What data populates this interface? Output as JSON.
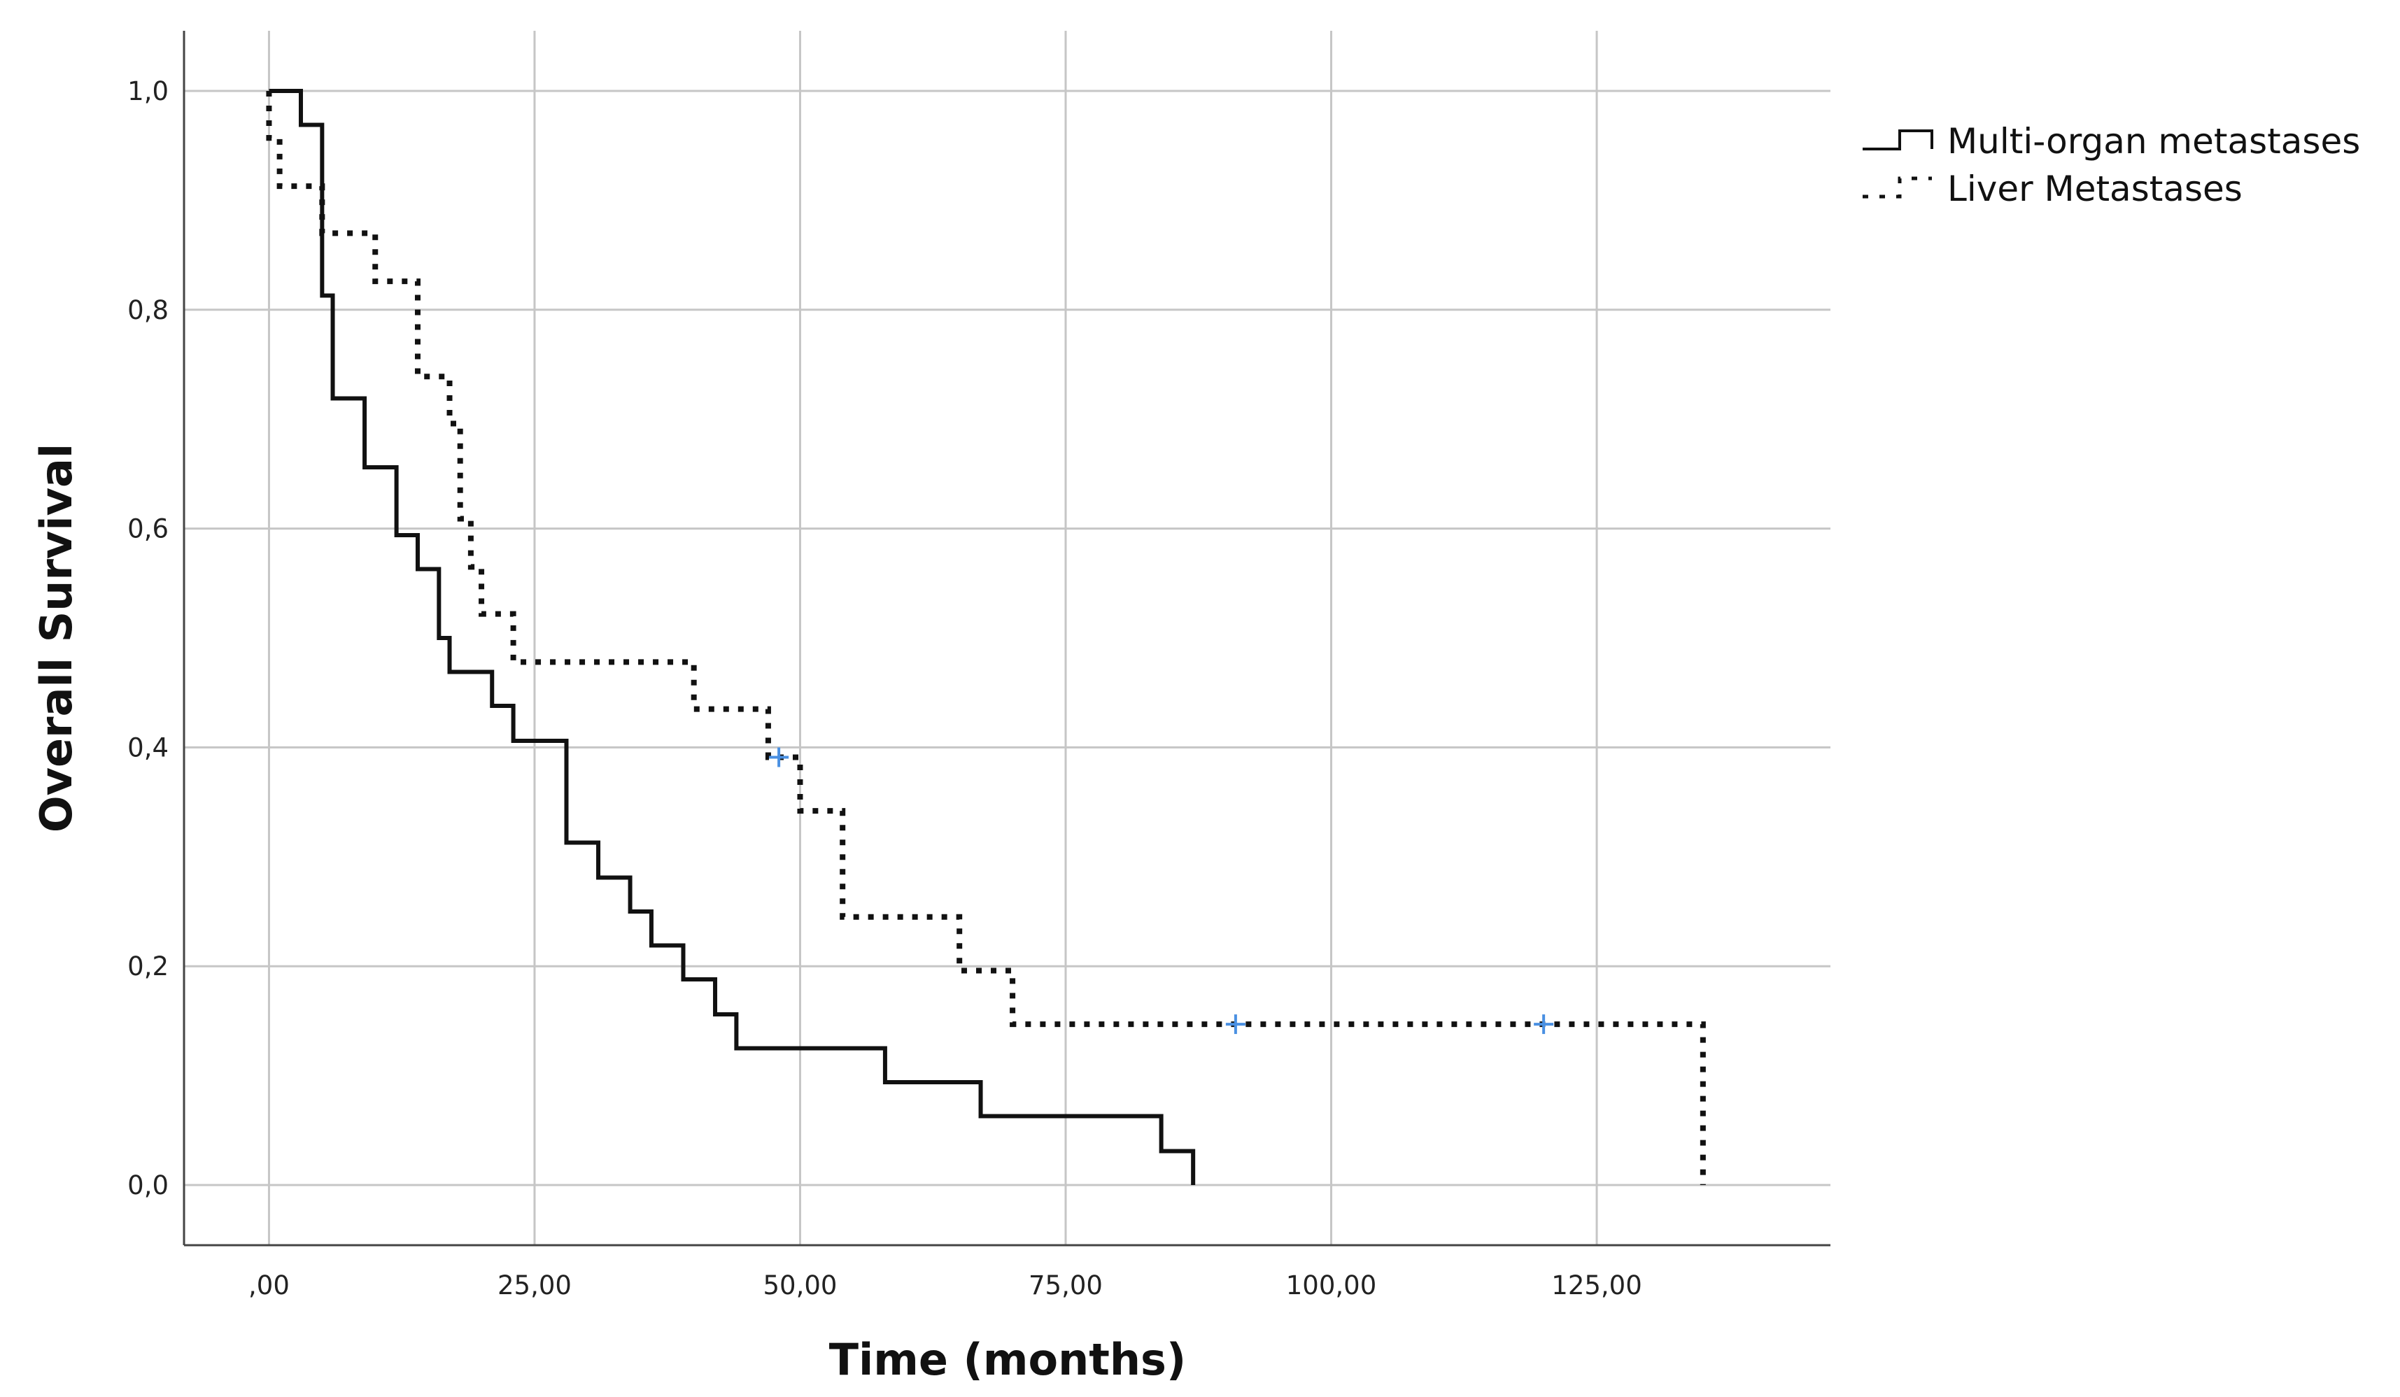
{
  "chart_data": {
    "type": "line",
    "subtype": "kaplan-meier-step",
    "title": "",
    "xlabel": "Time (months)",
    "ylabel": "Overall Survival",
    "xlim": [
      -8,
      147
    ],
    "ylim": [
      -0.055,
      1.055
    ],
    "x_ticks": [
      0,
      25,
      50,
      75,
      100,
      125
    ],
    "x_tick_labels": [
      ",00",
      "25,00",
      "50,00",
      "75,00",
      "100,00",
      "125,00"
    ],
    "y_ticks": [
      0,
      0.2,
      0.4,
      0.6,
      0.8,
      1.0
    ],
    "y_tick_labels": [
      "0,0",
      "0,2",
      "0,4",
      "0,6",
      "0,8",
      "1,0"
    ],
    "grid": true,
    "legend_position": "top-right outside",
    "series": [
      {
        "name": "Multi-organ metastases",
        "style": "solid",
        "color": "#111111",
        "x": [
          0,
          3,
          5,
          6,
          9,
          12,
          14,
          16,
          17,
          21,
          23,
          28,
          31,
          34,
          36,
          39,
          42,
          44,
          58,
          67,
          84,
          87
        ],
        "y": [
          1.0,
          0.969,
          0.813,
          0.719,
          0.656,
          0.594,
          0.563,
          0.5,
          0.469,
          0.438,
          0.406,
          0.313,
          0.281,
          0.25,
          0.219,
          0.188,
          0.156,
          0.125,
          0.094,
          0.063,
          0.031,
          0.0
        ],
        "censored": []
      },
      {
        "name": "Liver Metastases",
        "style": "dotted",
        "color": "#111111",
        "x": [
          0,
          1,
          5,
          10,
          14,
          17,
          18,
          19,
          20,
          23,
          40,
          47,
          50,
          54,
          65,
          70,
          135
        ],
        "y": [
          0.957,
          0.913,
          0.87,
          0.826,
          0.739,
          0.696,
          0.609,
          0.565,
          0.522,
          0.478,
          0.435,
          0.391,
          0.342,
          0.245,
          0.196,
          0.147,
          0.0
        ],
        "censored": [
          {
            "x": 48,
            "y": 0.391
          },
          {
            "x": 91,
            "y": 0.147
          },
          {
            "x": 120,
            "y": 0.147
          }
        ]
      }
    ],
    "censor_marker_color": "#4a90e2"
  }
}
